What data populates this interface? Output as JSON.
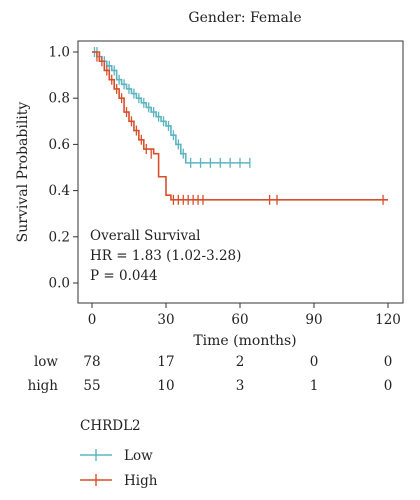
{
  "chart_data": {
    "type": "line",
    "subtype": "kaplan-meier",
    "title": "Gender: Female",
    "xlabel": "Time (months)",
    "ylabel": "Survival Probability",
    "xlim": [
      0,
      120
    ],
    "ylim": [
      0,
      1
    ],
    "x_ticks": [
      "0",
      "30",
      "60",
      "90",
      "120"
    ],
    "y_ticks": [
      "0.0",
      "0.2",
      "0.4",
      "0.6",
      "0.8",
      "1.0"
    ],
    "grid": false,
    "annotation": [
      "Overall Survival",
      "HR = 1.83 (1.02-3.28)",
      "P = 0.044"
    ],
    "legend": {
      "title": "CHRDL2",
      "position": "bottom-left",
      "entries": [
        {
          "label": "Low",
          "color": "#5bb5c0"
        },
        {
          "label": "High",
          "color": "#d94f2b"
        }
      ]
    },
    "series": [
      {
        "name": "Low",
        "color": "#5bb5c0",
        "step_x": [
          0,
          2,
          4,
          6,
          8,
          10,
          12,
          14,
          16,
          18,
          20,
          22,
          24,
          26,
          28,
          30,
          32,
          34,
          36,
          38,
          64
        ],
        "step_y": [
          1.0,
          0.98,
          0.96,
          0.94,
          0.92,
          0.88,
          0.86,
          0.84,
          0.82,
          0.8,
          0.78,
          0.76,
          0.74,
          0.72,
          0.7,
          0.68,
          0.64,
          0.6,
          0.56,
          0.52,
          0.52
        ],
        "censor_x": [
          1,
          2,
          3,
          5,
          7,
          9,
          11,
          13,
          15,
          17,
          19,
          21,
          23,
          25,
          27,
          29,
          31,
          33,
          35,
          37,
          40,
          44,
          48,
          52,
          56,
          60,
          64
        ],
        "censor_y": [
          1.0,
          1.0,
          0.98,
          0.96,
          0.94,
          0.92,
          0.88,
          0.86,
          0.84,
          0.82,
          0.8,
          0.78,
          0.76,
          0.74,
          0.72,
          0.7,
          0.68,
          0.64,
          0.6,
          0.56,
          0.52,
          0.52,
          0.52,
          0.52,
          0.52,
          0.52,
          0.52
        ]
      },
      {
        "name": "High",
        "color": "#d94f2b",
        "step_x": [
          0,
          3,
          5,
          7,
          9,
          11,
          13,
          15,
          17,
          19,
          21,
          25,
          27,
          30,
          32,
          120
        ],
        "step_y": [
          1.0,
          0.96,
          0.92,
          0.88,
          0.84,
          0.8,
          0.74,
          0.7,
          0.66,
          0.62,
          0.58,
          0.56,
          0.46,
          0.38,
          0.36,
          0.36
        ],
        "censor_x": [
          2,
          4,
          6,
          8,
          10,
          12,
          14,
          16,
          18,
          20,
          22,
          24,
          33,
          35,
          37,
          39,
          41,
          43,
          45,
          72,
          75,
          118
        ],
        "censor_y": [
          0.98,
          0.96,
          0.92,
          0.88,
          0.84,
          0.8,
          0.74,
          0.7,
          0.66,
          0.62,
          0.58,
          0.56,
          0.36,
          0.36,
          0.36,
          0.36,
          0.36,
          0.36,
          0.36,
          0.36,
          0.36,
          0.36
        ]
      }
    ],
    "risk_table": {
      "times": [
        0,
        30,
        60,
        90,
        120
      ],
      "rows": [
        {
          "label": "low",
          "counts": [
            "78",
            "17",
            "2",
            "0",
            "0"
          ]
        },
        {
          "label": "high",
          "counts": [
            "55",
            "10",
            "3",
            "1",
            "0"
          ]
        }
      ]
    }
  }
}
